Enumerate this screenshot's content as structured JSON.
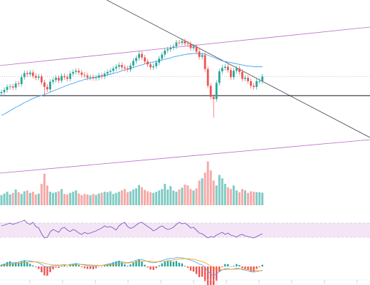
{
  "chart_data": {
    "type": "candlestick",
    "grid": false,
    "legend": "none",
    "colors": {
      "up": "#26a69a",
      "down": "#ef5350",
      "channel": "#ba68c8",
      "trendline": "#434651",
      "support": "#131722",
      "moving_average": "#42a5f5",
      "rsi_line": "#7e57c2",
      "rsi_band": "#f3e5f5",
      "macd_line": "#42a5f5",
      "signal_line": "#ff9800"
    },
    "price": {
      "closes": [
        100.0,
        100.4,
        100.9,
        101.0,
        100.8,
        101.5,
        101.4,
        102.6,
        103.3,
        103.1,
        103.4,
        102.8,
        102.5,
        102.7,
        101.7,
        100.9,
        100.5,
        101.8,
        102.1,
        102.5,
        102.0,
        102.8,
        102.6,
        102.3,
        103.2,
        103.5,
        103.7,
        103.4,
        103.0,
        102.9,
        102.5,
        102.6,
        102.4,
        102.5,
        102.9,
        102.7,
        103.2,
        103.5,
        103.7,
        104.1,
        104.4,
        104.7,
        104.3,
        104.1,
        103.9,
        104.6,
        105.4,
        105.9,
        106.6,
        106.0,
        105.3,
        104.8,
        104.3,
        104.5,
        105.1,
        105.8,
        106.5,
        107.2,
        107.4,
        107.7,
        107.9,
        108.6,
        108.5,
        108.8,
        108.4,
        108.3,
        107.6,
        107.9,
        107.0,
        106.1,
        106.4,
        104.0,
        101.1,
        99.2,
        98.8,
        101.6,
        103.6,
        104.2,
        104.4,
        103.8,
        102.6,
        103.7,
        104.1,
        103.5,
        102.3,
        102.5,
        101.9,
        101.1,
        100.9,
        101.9,
        101.9,
        102.7
      ],
      "opens": [
        99.8,
        100.0,
        100.4,
        100.9,
        101.0,
        100.8,
        101.5,
        101.4,
        102.6,
        103.3,
        103.1,
        103.4,
        102.8,
        102.5,
        102.7,
        101.7,
        100.9,
        100.5,
        101.8,
        102.1,
        102.5,
        102.0,
        102.8,
        102.6,
        102.3,
        103.2,
        103.5,
        103.7,
        103.4,
        103.0,
        102.9,
        102.5,
        102.6,
        102.4,
        102.5,
        102.9,
        102.7,
        103.2,
        103.5,
        103.7,
        104.1,
        104.4,
        104.7,
        104.3,
        104.1,
        103.9,
        104.6,
        105.4,
        105.9,
        106.6,
        106.0,
        105.3,
        104.8,
        104.3,
        104.5,
        105.1,
        105.8,
        106.5,
        107.2,
        107.4,
        107.7,
        107.9,
        108.6,
        108.5,
        108.8,
        108.4,
        108.3,
        107.6,
        107.9,
        107.0,
        106.1,
        106.4,
        104.0,
        101.1,
        99.2,
        98.8,
        101.6,
        103.6,
        104.2,
        104.4,
        103.8,
        102.6,
        103.7,
        104.1,
        103.5,
        102.3,
        102.5,
        101.9,
        101.1,
        100.9,
        101.9,
        101.9
      ],
      "wick_low_spikes": {
        "15": 99.2,
        "74": 95.6
      },
      "moving_average": [
        96.0,
        96.2,
        96.5,
        96.8,
        97.1,
        97.4,
        97.6,
        97.9,
        98.2,
        98.4,
        98.7,
        98.9,
        99.1,
        99.3,
        99.4,
        99.6,
        99.8,
        100.0,
        100.2,
        100.4,
        100.6,
        100.8,
        101.0,
        101.2,
        101.4,
        101.5,
        101.7,
        101.9,
        102.0,
        102.2,
        102.3,
        102.4,
        102.5,
        102.6,
        102.7,
        102.8,
        102.9,
        103.0,
        103.1,
        103.2,
        103.4,
        103.5,
        103.7,
        103.8,
        104.0,
        104.1,
        104.3,
        104.4,
        104.6,
        104.7,
        104.9,
        105.0,
        105.1,
        105.2,
        105.3,
        105.4,
        105.6,
        105.7,
        105.8,
        105.9,
        106.1,
        106.2,
        106.3,
        106.4,
        106.5,
        106.6,
        106.6,
        106.7,
        106.7,
        106.7,
        106.6,
        106.6,
        106.4,
        106.2,
        106.0,
        105.8,
        105.6,
        105.4,
        105.3,
        105.2,
        105.1,
        105.0,
        104.9,
        104.8,
        104.7,
        104.6,
        104.5,
        104.5,
        104.4,
        104.4,
        104.4,
        104.4
      ],
      "support_level": 99.4
    },
    "volume": [
      45,
      52,
      60,
      48,
      55,
      70,
      58,
      50,
      62,
      66,
      55,
      60,
      48,
      52,
      95,
      140,
      88,
      60,
      55,
      58,
      62,
      72,
      50,
      48,
      55,
      60,
      66,
      52,
      45,
      50,
      48,
      44,
      50,
      46,
      52,
      56,
      60,
      58,
      62,
      50,
      55,
      60,
      66,
      72,
      58,
      62,
      70,
      75,
      90,
      80,
      68,
      62,
      58,
      55,
      60,
      66,
      72,
      95,
      70,
      85,
      65,
      60,
      70,
      78,
      92,
      88,
      72,
      66,
      75,
      110,
      120,
      145,
      195,
      155,
      110,
      88,
      135,
      120,
      95,
      80,
      72,
      88,
      66,
      58,
      72,
      66,
      55,
      62,
      60,
      58,
      58,
      56
    ],
    "volume_up": [
      1,
      1,
      1,
      1,
      0,
      1,
      0,
      1,
      1,
      0,
      1,
      0,
      0,
      1,
      0,
      0,
      0,
      1,
      1,
      1,
      0,
      1,
      0,
      0,
      1,
      1,
      1,
      0,
      0,
      0,
      0,
      1,
      0,
      1,
      1,
      0,
      1,
      1,
      1,
      1,
      1,
      1,
      0,
      0,
      0,
      1,
      1,
      1,
      1,
      0,
      0,
      0,
      0,
      1,
      1,
      1,
      1,
      1,
      1,
      1,
      1,
      1,
      0,
      1,
      0,
      0,
      0,
      1,
      0,
      0,
      1,
      0,
      0,
      0,
      0,
      1,
      1,
      1,
      1,
      0,
      0,
      1,
      1,
      0,
      0,
      1,
      0,
      0,
      0,
      1,
      1,
      1
    ],
    "rsi": [
      62,
      64,
      67,
      70,
      66,
      69,
      72,
      74,
      78,
      70,
      66,
      72,
      60,
      56,
      40,
      28,
      30,
      45,
      52,
      48,
      44,
      55,
      58,
      50,
      46,
      52,
      48,
      42,
      38,
      44,
      40,
      42,
      45,
      48,
      52,
      56,
      62,
      58,
      60,
      56,
      50,
      62,
      68,
      72,
      60,
      55,
      58,
      64,
      70,
      72,
      66,
      60,
      55,
      48,
      52,
      58,
      62,
      56,
      52,
      54,
      58,
      66,
      72,
      68,
      70,
      64,
      56,
      58,
      50,
      42,
      40,
      34,
      28,
      32,
      30,
      36,
      40,
      44,
      38,
      42,
      36,
      34,
      30,
      36,
      38,
      34,
      32,
      30,
      28,
      32,
      36,
      40
    ],
    "macd": {
      "macd_line": [
        0.15,
        0.2,
        0.28,
        0.34,
        0.32,
        0.36,
        0.38,
        0.45,
        0.52,
        0.5,
        0.48,
        0.44,
        0.38,
        0.32,
        0.18,
        0.02,
        -0.06,
        0.0,
        0.06,
        0.1,
        0.08,
        0.14,
        0.16,
        0.12,
        0.18,
        0.22,
        0.26,
        0.22,
        0.16,
        0.12,
        0.08,
        0.06,
        0.04,
        0.06,
        0.1,
        0.1,
        0.14,
        0.2,
        0.24,
        0.3,
        0.36,
        0.42,
        0.4,
        0.36,
        0.32,
        0.38,
        0.46,
        0.54,
        0.62,
        0.6,
        0.52,
        0.44,
        0.36,
        0.32,
        0.36,
        0.44,
        0.52,
        0.6,
        0.66,
        0.7,
        0.72,
        0.78,
        0.76,
        0.76,
        0.7,
        0.64,
        0.54,
        0.48,
        0.36,
        0.2,
        0.14,
        -0.1,
        -0.4,
        -0.66,
        -0.8,
        -0.66,
        -0.44,
        -0.3,
        -0.2,
        -0.18,
        -0.26,
        -0.22,
        -0.16,
        -0.18,
        -0.28,
        -0.32,
        -0.38,
        -0.46,
        -0.5,
        -0.44,
        -0.4,
        -0.32
      ],
      "signal_line": [
        0.1,
        0.12,
        0.15,
        0.19,
        0.22,
        0.25,
        0.27,
        0.31,
        0.35,
        0.38,
        0.4,
        0.41,
        0.4,
        0.39,
        0.35,
        0.28,
        0.21,
        0.17,
        0.14,
        0.13,
        0.12,
        0.12,
        0.13,
        0.13,
        0.14,
        0.15,
        0.17,
        0.18,
        0.18,
        0.17,
        0.15,
        0.13,
        0.12,
        0.11,
        0.11,
        0.11,
        0.11,
        0.13,
        0.15,
        0.18,
        0.21,
        0.25,
        0.28,
        0.3,
        0.3,
        0.32,
        0.34,
        0.38,
        0.42,
        0.46,
        0.47,
        0.47,
        0.45,
        0.42,
        0.41,
        0.41,
        0.43,
        0.46,
        0.5,
        0.54,
        0.58,
        0.62,
        0.65,
        0.67,
        0.68,
        0.68,
        0.66,
        0.63,
        0.58,
        0.51,
        0.44,
        0.33,
        0.19,
        0.02,
        -0.14,
        -0.24,
        -0.28,
        -0.28,
        -0.27,
        -0.25,
        -0.25,
        -0.24,
        -0.23,
        -0.22,
        -0.23,
        -0.25,
        -0.28,
        -0.31,
        -0.35,
        -0.37,
        -0.38,
        -0.37
      ]
    },
    "x_tick_count": 12
  }
}
